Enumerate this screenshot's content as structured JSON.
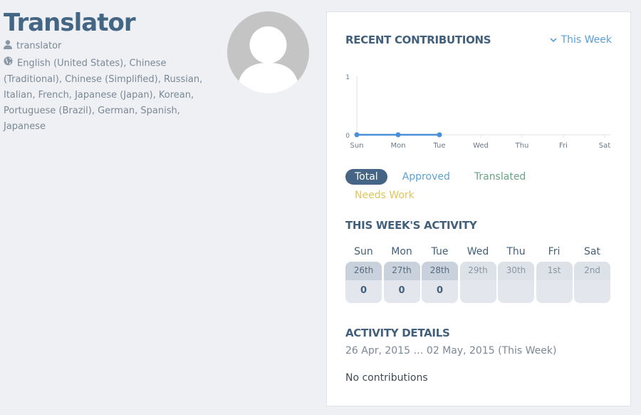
{
  "profile": {
    "name": "Translator",
    "username": "translator",
    "languages": "English (United States), Chinese (Traditional), Chinese (Simplified), Russian, Italian, French, Japanese (Japan), Korean, Portuguese (Brazil), German, Spanish, Japanese"
  },
  "contributions": {
    "title": "RECENT CONTRIBUTIONS",
    "range_label": "This Week"
  },
  "chart_data": {
    "type": "line",
    "categories": [
      "Sun",
      "Mon",
      "Tue",
      "Wed",
      "Thu",
      "Fri",
      "Sat"
    ],
    "series": [
      {
        "values": [
          0,
          0,
          0,
          null,
          null,
          null,
          null
        ],
        "color": "#4a90d9"
      }
    ],
    "y_ticks": [
      "0",
      "1"
    ],
    "ylim": [
      0,
      1
    ]
  },
  "filters": {
    "total": "Total",
    "approved": "Approved",
    "translated": "Translated",
    "needs_work": "Needs Work"
  },
  "week": {
    "title": "THIS WEEK'S ACTIVITY",
    "days": [
      {
        "name": "Sun",
        "date": "26th",
        "count": "0"
      },
      {
        "name": "Mon",
        "date": "27th",
        "count": "0"
      },
      {
        "name": "Tue",
        "date": "28th",
        "count": "0"
      },
      {
        "name": "Wed",
        "date": "29th",
        "count": ""
      },
      {
        "name": "Thu",
        "date": "30th",
        "count": ""
      },
      {
        "name": "Fri",
        "date": "1st",
        "count": ""
      },
      {
        "name": "Sat",
        "date": "2nd",
        "count": ""
      }
    ]
  },
  "details": {
    "title": "ACTIVITY DETAILS",
    "range": "26 Apr, 2015 … 02 May, 2015 (This Week)",
    "empty": "No contributions"
  },
  "colors": {
    "accent": "#466585",
    "link": "#5a9fd4",
    "line": "#4a90d9"
  }
}
